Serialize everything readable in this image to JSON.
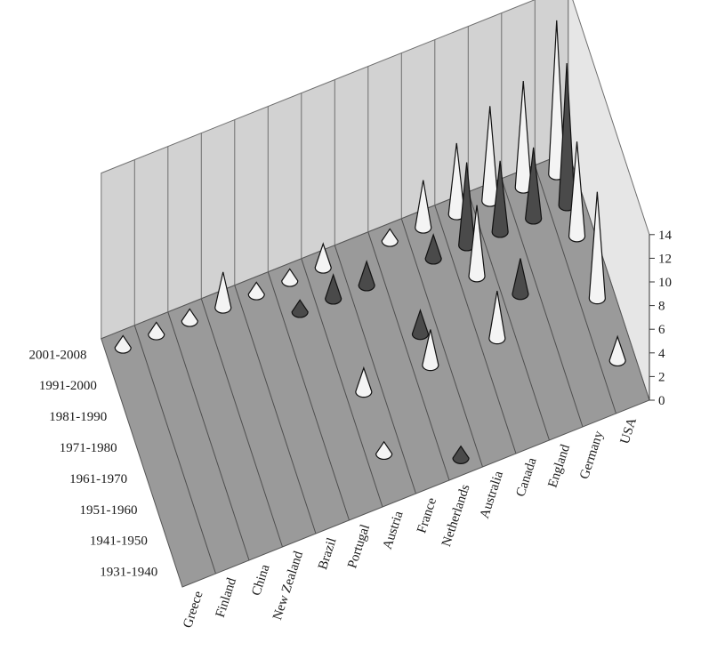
{
  "chart_data": {
    "type": "3d-cone",
    "categories": [
      "Greece",
      "Finland",
      "China",
      "New Zealand",
      "Brazil",
      "Portugal",
      "Austria",
      "France",
      "Netherlands",
      "Australia",
      "Canada",
      "England",
      "Germany",
      "USA"
    ],
    "periods": [
      "1931-1940",
      "1941-1950",
      "1951-1960",
      "1961-1970",
      "1971-1980",
      "1981-1990",
      "1991-2000",
      "2001-2008"
    ],
    "zlim": [
      0,
      14
    ],
    "zticks": [
      "0",
      "2",
      "4",
      "6",
      "8",
      "10",
      "12",
      "14"
    ],
    "title": "",
    "xlabel": "",
    "ylabel": "",
    "zlabel": "",
    "grid": true,
    "legend": "none",
    "colors": {
      "light": "#f4f4f4",
      "dark": "#4a4a4a",
      "wall": "#d2d2d2",
      "floor": "#9a9a9a",
      "grid": "#6f6f6f"
    },
    "points": [
      {
        "category": "Greece",
        "period": "2001-2008",
        "value": 1
      },
      {
        "category": "Finland",
        "period": "2001-2008",
        "value": 1
      },
      {
        "category": "China",
        "period": "2001-2008",
        "value": 1
      },
      {
        "category": "New Zealand",
        "period": "2001-2008",
        "value": 3
      },
      {
        "category": "Brazil",
        "period": "2001-2008",
        "value": 1
      },
      {
        "category": "Portugal",
        "period": "2001-2008",
        "value": 1
      },
      {
        "category": "Portugal",
        "period": "1991-2000",
        "value": 1
      },
      {
        "category": "Austria",
        "period": "2001-2008",
        "value": 2
      },
      {
        "category": "Austria",
        "period": "1991-2000",
        "value": 2
      },
      {
        "category": "Austria",
        "period": "1961-1970",
        "value": 2
      },
      {
        "category": "Austria",
        "period": "1941-1950",
        "value": 1
      },
      {
        "category": "France",
        "period": "1991-2000",
        "value": 2
      },
      {
        "category": "Netherlands",
        "period": "2001-2008",
        "value": 1
      },
      {
        "category": "Netherlands",
        "period": "1971-1980",
        "value": 2
      },
      {
        "category": "Netherlands",
        "period": "1961-1970",
        "value": 3
      },
      {
        "category": "Netherlands",
        "period": "1931-1940",
        "value": 1
      },
      {
        "category": "Australia",
        "period": "2001-2008",
        "value": 4
      },
      {
        "category": "Australia",
        "period": "1991-2000",
        "value": 2
      },
      {
        "category": "Canada",
        "period": "2001-2008",
        "value": 6
      },
      {
        "category": "Canada",
        "period": "1991-2000",
        "value": 7
      },
      {
        "category": "Canada",
        "period": "1981-1990",
        "value": 6
      },
      {
        "category": "Canada",
        "period": "1961-1970",
        "value": 4
      },
      {
        "category": "England",
        "period": "2001-2008",
        "value": 8
      },
      {
        "category": "England",
        "period": "1991-2000",
        "value": 6
      },
      {
        "category": "England",
        "period": "1971-1980",
        "value": 3
      },
      {
        "category": "Germany",
        "period": "2001-2008",
        "value": 9
      },
      {
        "category": "Germany",
        "period": "1991-2000",
        "value": 6
      },
      {
        "category": "USA",
        "period": "2001-2008",
        "value": 13
      },
      {
        "category": "USA",
        "period": "1991-2000",
        "value": 12
      },
      {
        "category": "USA",
        "period": "1981-1990",
        "value": 8
      },
      {
        "category": "USA",
        "period": "1961-1970",
        "value": 9
      },
      {
        "category": "USA",
        "period": "1941-1950",
        "value": 2
      }
    ]
  }
}
